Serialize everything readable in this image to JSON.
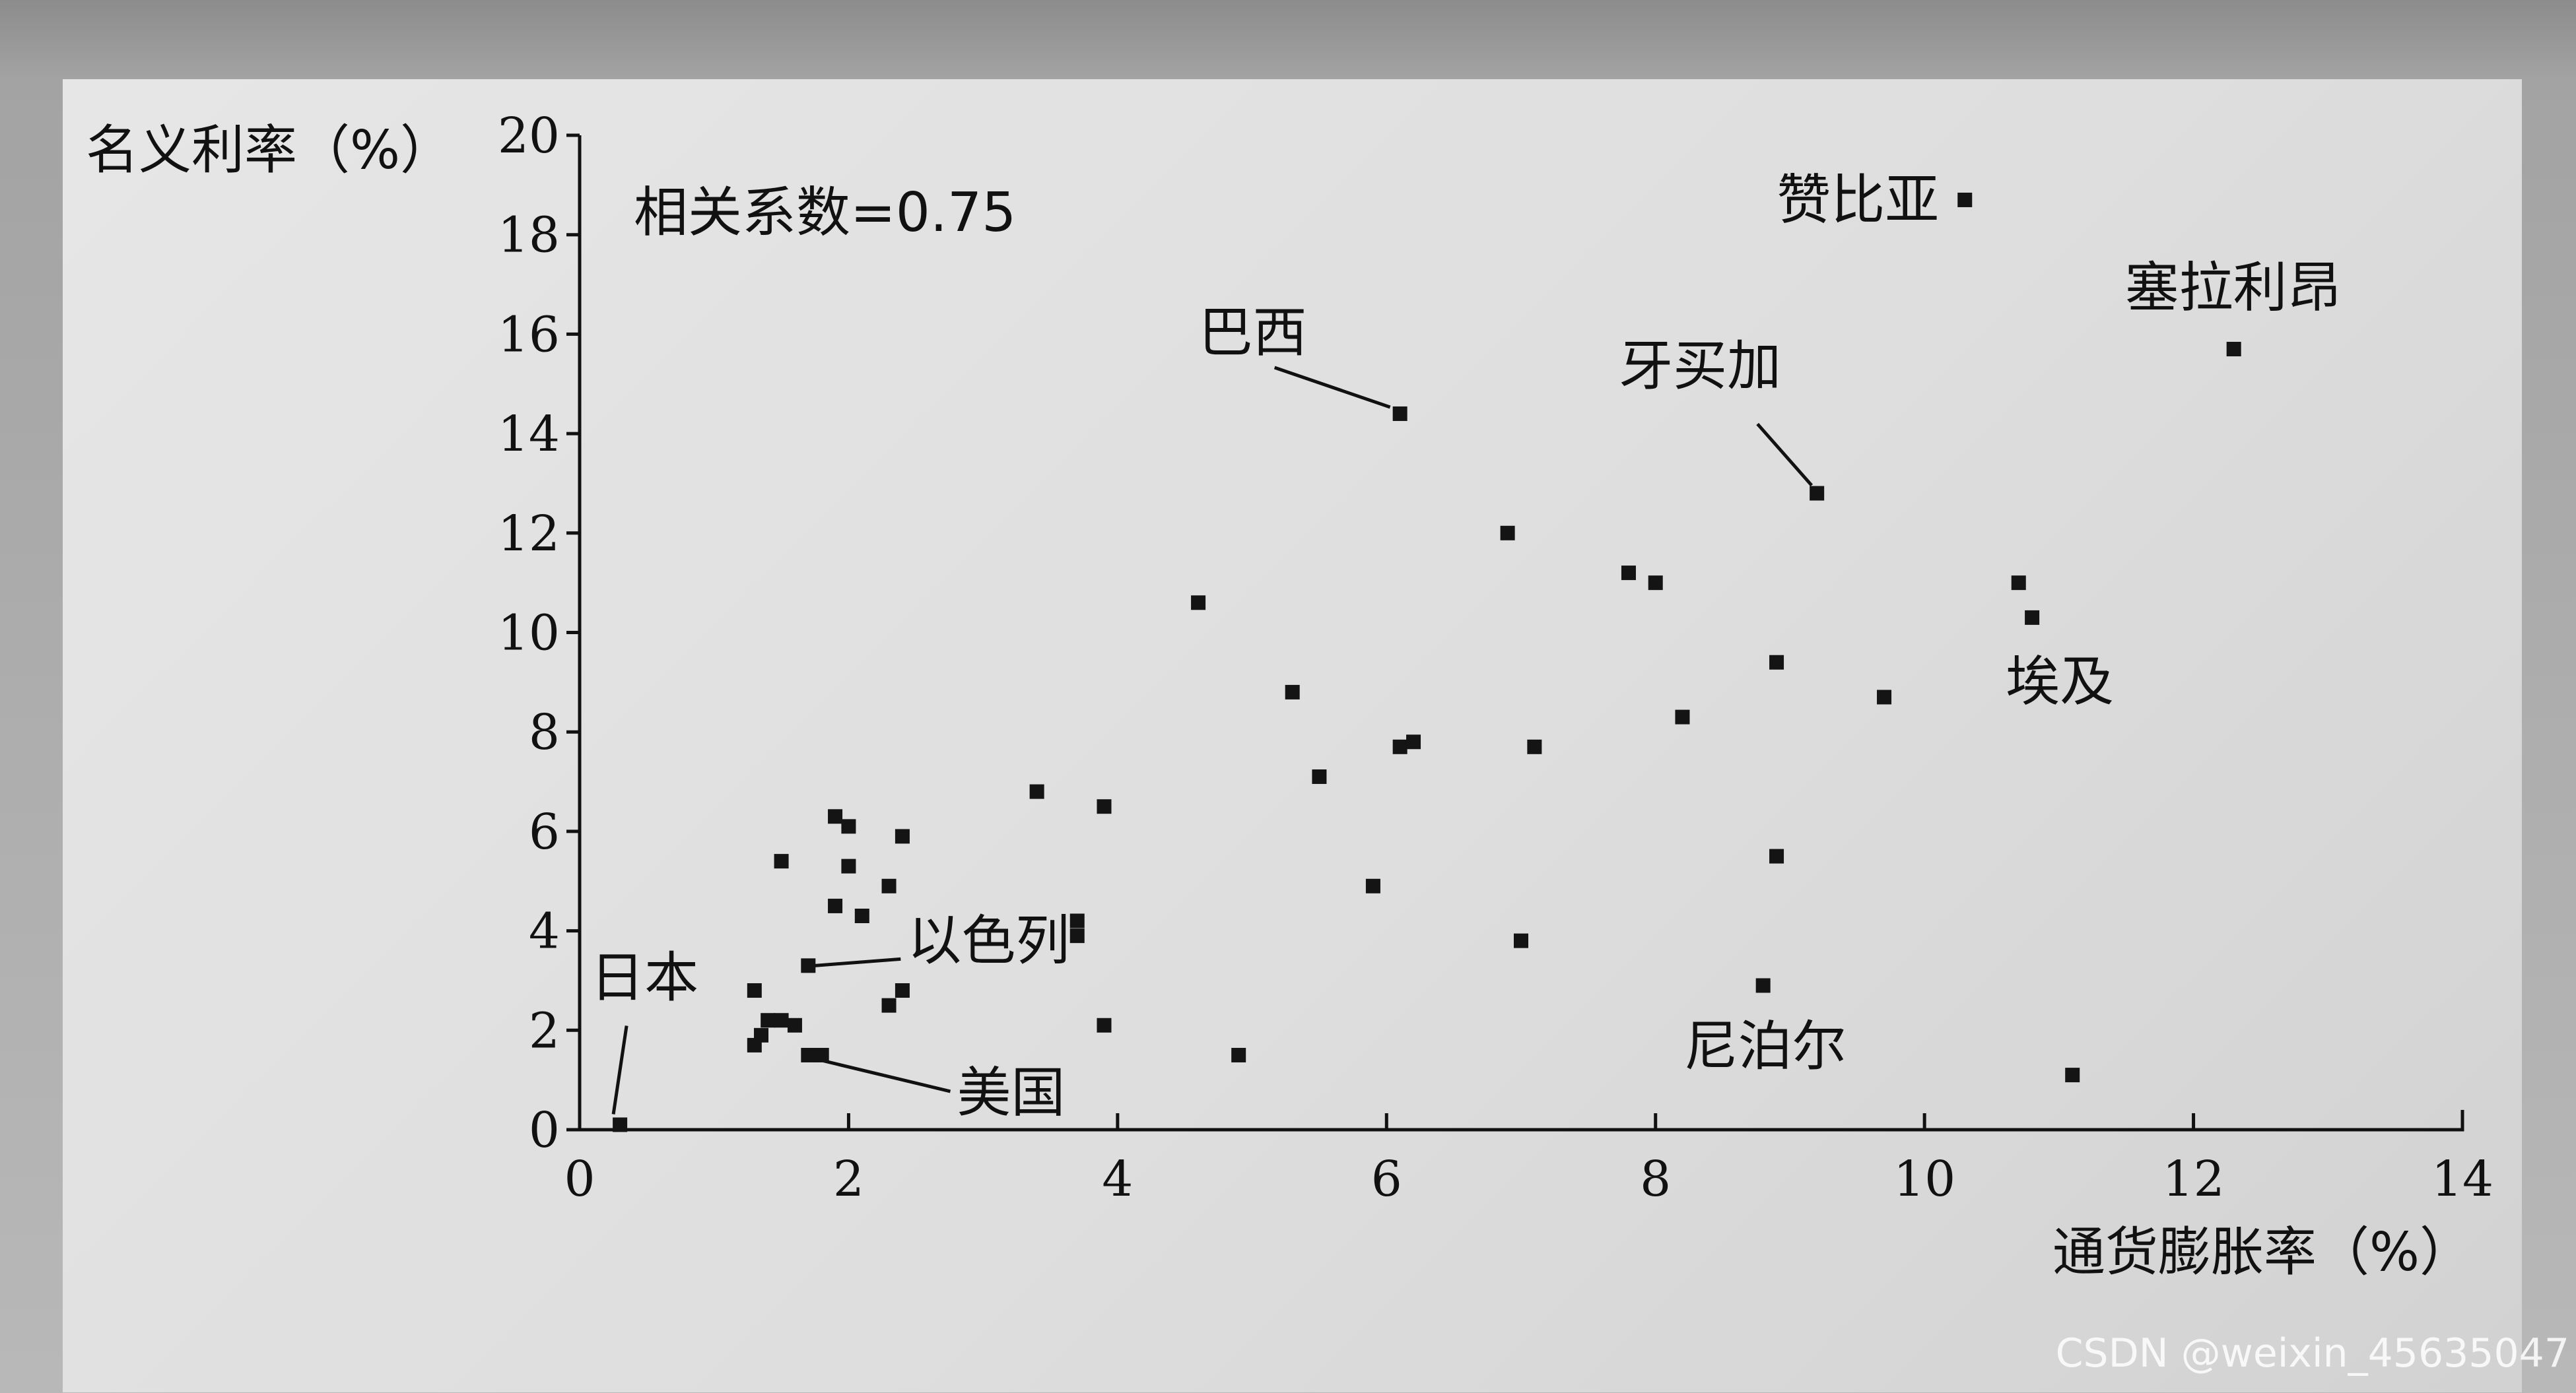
{
  "chart_data": {
    "type": "scatter",
    "title": "",
    "xlabel": "通货膨胀率（%）",
    "ylabel": "名义利率（%）",
    "xlim": [
      0,
      14
    ],
    "ylim": [
      0,
      20
    ],
    "xticks": [
      0,
      2,
      4,
      6,
      8,
      10,
      12,
      14
    ],
    "yticks": [
      0,
      2,
      4,
      6,
      8,
      10,
      12,
      14,
      16,
      18,
      20
    ],
    "grid": false,
    "annotation": "相关系数=0.75",
    "correlation": 0.75,
    "points": [
      {
        "x": 0.3,
        "y": 0.1
      },
      {
        "x": 1.3,
        "y": 1.7
      },
      {
        "x": 1.35,
        "y": 1.9
      },
      {
        "x": 1.4,
        "y": 2.2
      },
      {
        "x": 1.5,
        "y": 2.2
      },
      {
        "x": 1.6,
        "y": 2.1
      },
      {
        "x": 1.3,
        "y": 2.8
      },
      {
        "x": 1.5,
        "y": 5.4
      },
      {
        "x": 1.7,
        "y": 3.3
      },
      {
        "x": 1.7,
        "y": 1.5
      },
      {
        "x": 1.8,
        "y": 1.5
      },
      {
        "x": 1.9,
        "y": 6.3
      },
      {
        "x": 1.9,
        "y": 4.5
      },
      {
        "x": 2.0,
        "y": 6.1
      },
      {
        "x": 2.0,
        "y": 5.3
      },
      {
        "x": 2.1,
        "y": 4.3
      },
      {
        "x": 2.3,
        "y": 4.9
      },
      {
        "x": 2.4,
        "y": 5.9
      },
      {
        "x": 2.3,
        "y": 2.5
      },
      {
        "x": 2.4,
        "y": 2.8
      },
      {
        "x": 3.4,
        "y": 6.8
      },
      {
        "x": 3.7,
        "y": 4.2
      },
      {
        "x": 3.7,
        "y": 3.9
      },
      {
        "x": 3.9,
        "y": 6.5
      },
      {
        "x": 3.9,
        "y": 2.1
      },
      {
        "x": 4.6,
        "y": 10.6
      },
      {
        "x": 4.9,
        "y": 1.5
      },
      {
        "x": 5.3,
        "y": 8.8
      },
      {
        "x": 5.5,
        "y": 7.1
      },
      {
        "x": 5.9,
        "y": 4.9
      },
      {
        "x": 6.1,
        "y": 7.7
      },
      {
        "x": 6.2,
        "y": 7.8
      },
      {
        "x": 6.1,
        "y": 14.4
      },
      {
        "x": 6.9,
        "y": 12.0
      },
      {
        "x": 7.0,
        "y": 3.8
      },
      {
        "x": 7.1,
        "y": 7.7
      },
      {
        "x": 7.8,
        "y": 11.2
      },
      {
        "x": 8.0,
        "y": 11.0
      },
      {
        "x": 8.2,
        "y": 8.3
      },
      {
        "x": 8.8,
        "y": 2.9
      },
      {
        "x": 8.9,
        "y": 9.4
      },
      {
        "x": 8.9,
        "y": 5.5
      },
      {
        "x": 9.2,
        "y": 12.8
      },
      {
        "x": 9.7,
        "y": 8.7
      },
      {
        "x": 10.3,
        "y": 18.7
      },
      {
        "x": 10.7,
        "y": 11.0
      },
      {
        "x": 10.8,
        "y": 10.3
      },
      {
        "x": 11.1,
        "y": 1.1
      },
      {
        "x": 12.3,
        "y": 15.7
      }
    ],
    "labels": [
      {
        "text": "日本",
        "x": 0.3,
        "y": 0.1
      },
      {
        "text": "以色列",
        "x": 1.7,
        "y": 3.3
      },
      {
        "text": "美国",
        "x": 1.75,
        "y": 1.5
      },
      {
        "text": "巴西",
        "x": 6.1,
        "y": 14.4
      },
      {
        "text": "牙买加",
        "x": 9.2,
        "y": 12.8
      },
      {
        "text": "赞比亚",
        "x": 10.3,
        "y": 18.7
      },
      {
        "text": "塞拉利昂",
        "x": 12.3,
        "y": 15.7
      },
      {
        "text": "埃及",
        "x": 10.8,
        "y": 10.3
      },
      {
        "text": "尼泊尔",
        "x": 8.8,
        "y": 2.9
      }
    ]
  },
  "watermark": "CSDN @weixin_45635047"
}
